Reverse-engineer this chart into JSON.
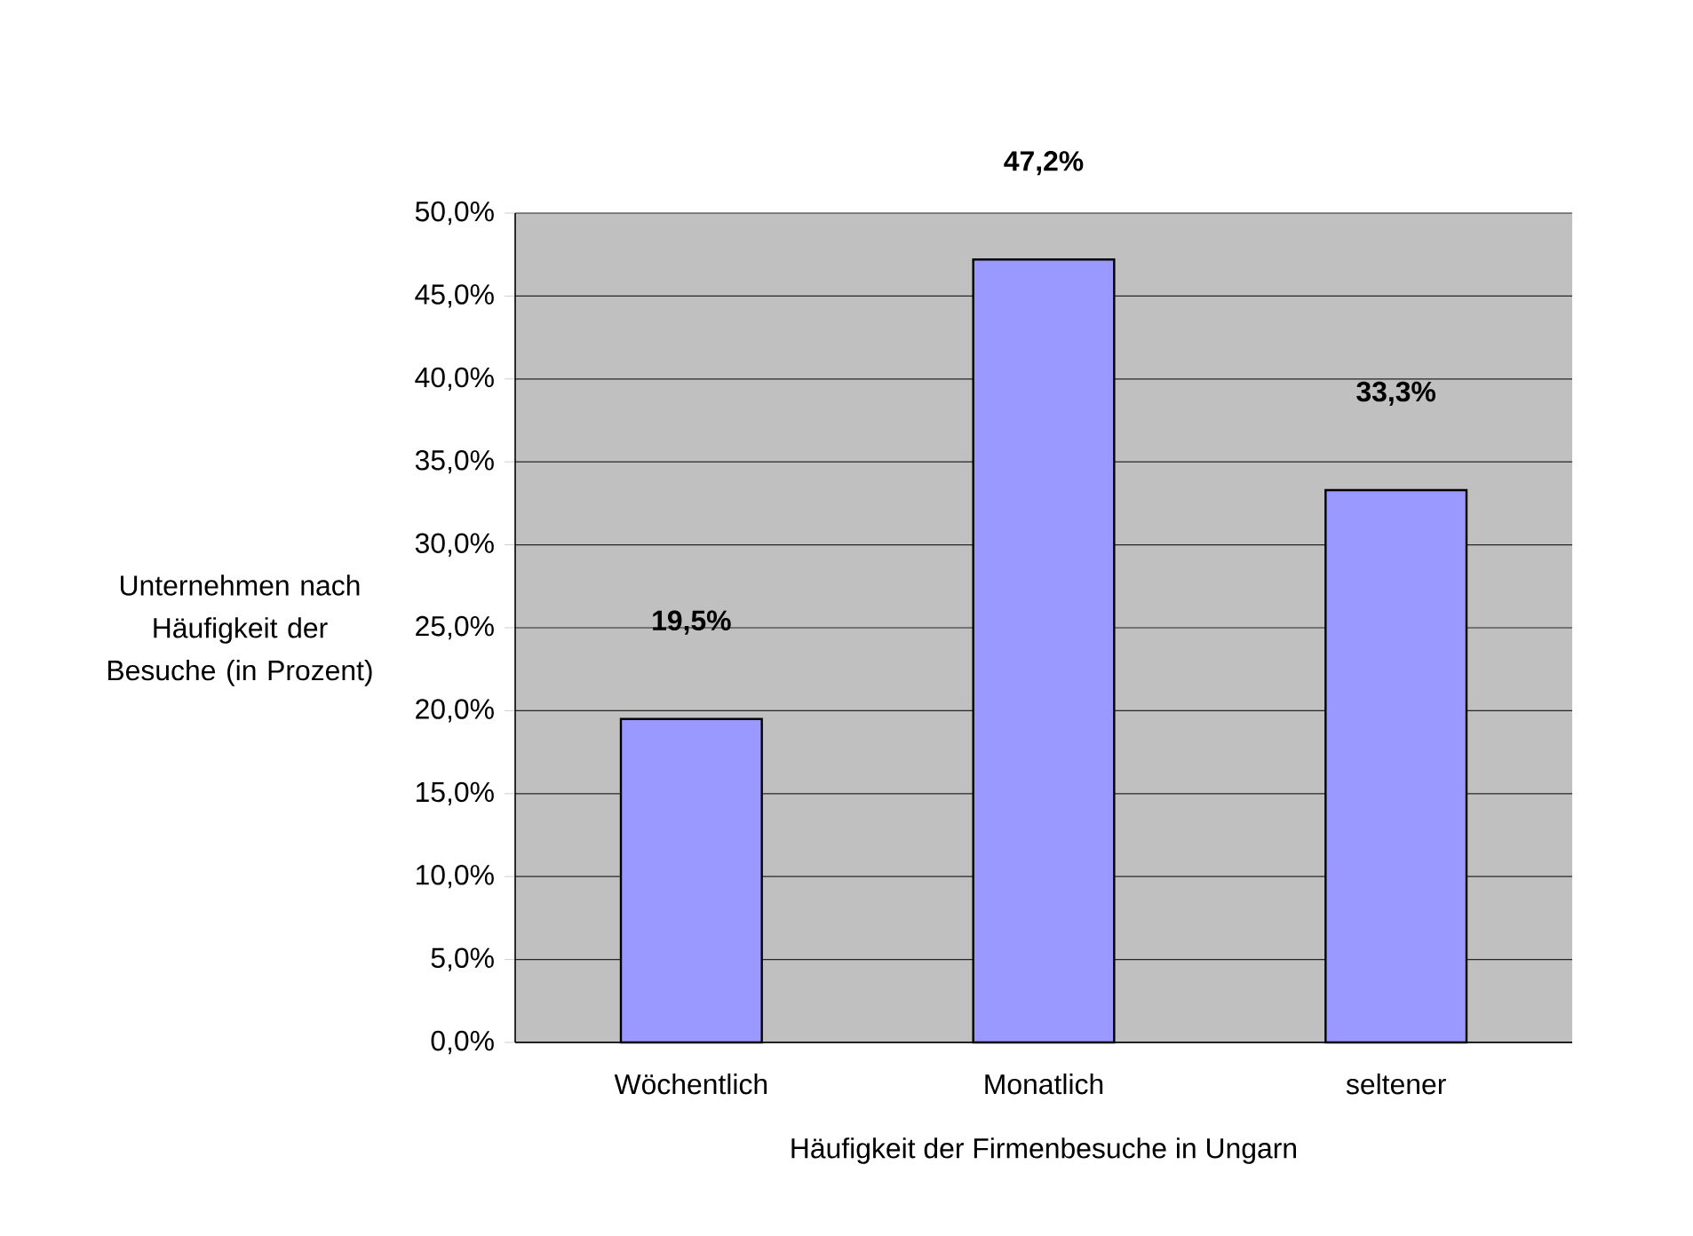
{
  "chart_data": {
    "type": "bar",
    "xlabel": "Häufigkeit der Firmenbesuche in Ungarn",
    "ylabel": "Unternehmen nach Häufigkeit der Besuche (in Prozent)",
    "categories": [
      "Wöchentlich",
      "Monatlich",
      "seltener"
    ],
    "values": [
      19.5,
      47.2,
      33.3
    ],
    "value_labels": [
      "19,5%",
      "47,2%",
      "33,3%"
    ],
    "color": "#9999ff",
    "ylim": [
      0,
      50
    ],
    "yticks": [
      {
        "value": 0,
        "label": "0,0%"
      },
      {
        "value": 5,
        "label": "5,0%"
      },
      {
        "value": 10,
        "label": "10,0%"
      },
      {
        "value": 15,
        "label": "15,0%"
      },
      {
        "value": 20,
        "label": "20,0%"
      },
      {
        "value": 25,
        "label": "25,0%"
      },
      {
        "value": 30,
        "label": "30,0%"
      },
      {
        "value": 35,
        "label": "35,0%"
      },
      {
        "value": 40,
        "label": "40,0%"
      },
      {
        "value": 45,
        "label": "45,0%"
      },
      {
        "value": 50,
        "label": "50,0%"
      }
    ],
    "grid": "y"
  }
}
